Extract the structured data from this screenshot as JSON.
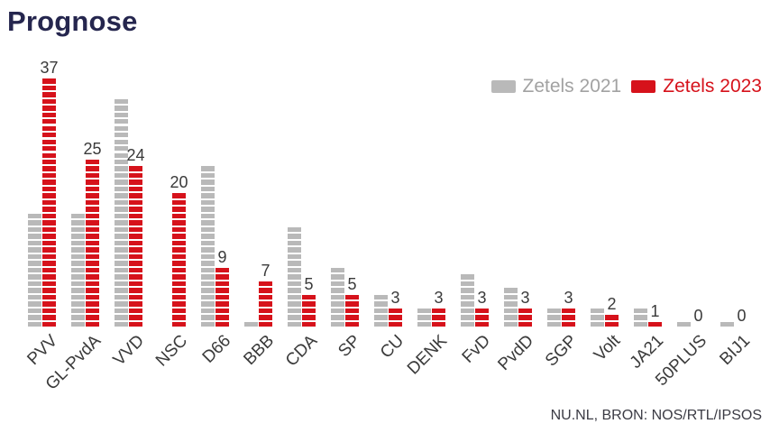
{
  "title": "Prognose",
  "legend": {
    "items": [
      {
        "label": "Zetels 2021",
        "color": "#b9b9b9"
      },
      {
        "label": "Zetels 2023",
        "color": "#d6121b"
      }
    ]
  },
  "source_text": "NU.NL, BRON: NOS/RTL/IPSOS",
  "colors": {
    "red_2023": "#d6121b",
    "gray_2021": "#b9b9b9",
    "title_navy": "#25264e",
    "label_dark": "#3a3a3a",
    "source_gray": "#3b3b44"
  },
  "chart_data": {
    "type": "bar",
    "style": "paired segmented seat bars, 1 block = 1 seat (zetel)",
    "title": "Prognose",
    "categories": [
      "PVV",
      "GL-PvdA",
      "VVD",
      "NSC",
      "D66",
      "BBB",
      "CDA",
      "SP",
      "CU",
      "DENK",
      "FvD",
      "PvdD",
      "SGP",
      "Volt",
      "JA21",
      "50PLUS",
      "BIJ1"
    ],
    "series": [
      {
        "name": "Zetels 2021",
        "color": "#b9b9b9",
        "values": [
          17,
          17,
          34,
          0,
          24,
          1,
          15,
          9,
          5,
          3,
          8,
          6,
          3,
          3,
          3,
          1,
          1
        ],
        "value_labels_shown": false
      },
      {
        "name": "Zetels 2023",
        "color": "#d6121b",
        "values": [
          37,
          25,
          24,
          20,
          9,
          7,
          5,
          5,
          3,
          3,
          3,
          3,
          3,
          2,
          1,
          0,
          0
        ],
        "value_labels_shown": true
      }
    ],
    "value_labels": [
      37,
      25,
      24,
      20,
      9,
      7,
      5,
      5,
      3,
      3,
      3,
      3,
      3,
      2,
      1,
      0,
      0
    ],
    "ylim": [
      0,
      37
    ],
    "grid": false,
    "axis_lines": false,
    "legend_position": "top-right",
    "category_label_rotation_deg": -45
  }
}
